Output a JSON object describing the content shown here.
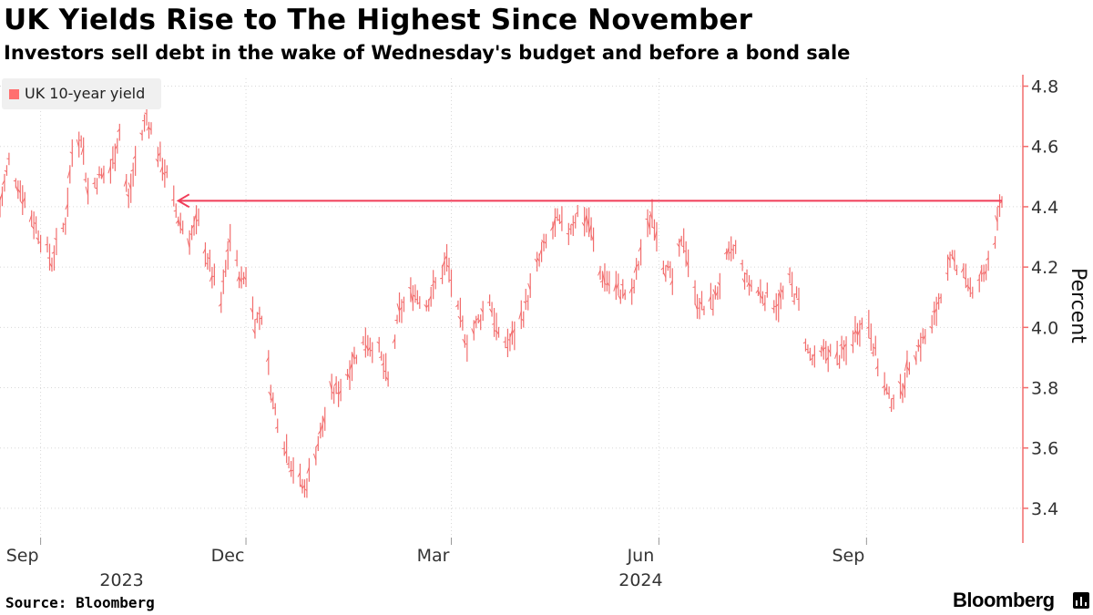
{
  "title": "UK Yields Rise to The Highest Since November",
  "subtitle": "Investors sell debt in the wake of Wednesday's budget and before a bond sale",
  "source": "Source: Bloomberg",
  "brand": "Bloomberg",
  "colors": {
    "series": "#f26d6d",
    "arrow": "#f03c58",
    "axis": "#f26d6d",
    "grid": "#d8d8d8"
  },
  "chart_data": {
    "type": "line",
    "style": "daily high-low bars",
    "title": "UK Yields Rise to The Highest Since November",
    "subtitle": "Investors sell debt in the wake of Wednesday's budget and before a bond sale",
    "ylabel": "Percent",
    "ylim": [
      3.3,
      4.85
    ],
    "yticks": [
      3.4,
      3.6,
      3.8,
      4.0,
      4.2,
      4.4,
      4.6,
      4.8
    ],
    "ytick_labels": [
      "3.4",
      "3.6",
      "3.8",
      "4.0",
      "4.2",
      "4.4",
      "4.6",
      "4.8"
    ],
    "x_range": [
      "2023-08-14",
      "2024-10-31"
    ],
    "x_month_labels": [
      {
        "date": "2023-09-01",
        "label": "Sep"
      },
      {
        "date": "2023-12-01",
        "label": "Dec"
      },
      {
        "date": "2024-03-01",
        "label": "Mar"
      },
      {
        "date": "2024-06-01",
        "label": "Jun"
      },
      {
        "date": "2024-09-01",
        "label": "Sep"
      }
    ],
    "x_year_labels": [
      {
        "date": "2023-10-15",
        "label": "2023"
      },
      {
        "date": "2024-06-01",
        "label": "2024"
      }
    ],
    "legend": [
      "UK 10-year yield"
    ],
    "annotation": {
      "type": "arrow",
      "level": 4.42,
      "from": "2024-10-31",
      "to": "2023-11-01",
      "text": ""
    },
    "series": [
      {
        "name": "UK 10-year yield",
        "anchors": [
          [
            "2023-08-14",
            4.4
          ],
          [
            "2023-08-18",
            4.55
          ],
          [
            "2023-08-25",
            4.42
          ],
          [
            "2023-09-01",
            4.3
          ],
          [
            "2023-09-06",
            4.22
          ],
          [
            "2023-09-12",
            4.35
          ],
          [
            "2023-09-15",
            4.58
          ],
          [
            "2023-09-19",
            4.64
          ],
          [
            "2023-09-22",
            4.45
          ],
          [
            "2023-09-27",
            4.5
          ],
          [
            "2023-10-02",
            4.52
          ],
          [
            "2023-10-06",
            4.65
          ],
          [
            "2023-10-10",
            4.42
          ],
          [
            "2023-10-13",
            4.55
          ],
          [
            "2023-10-18",
            4.7
          ],
          [
            "2023-10-23",
            4.58
          ],
          [
            "2023-10-27",
            4.5
          ],
          [
            "2023-11-01",
            4.36
          ],
          [
            "2023-11-06",
            4.3
          ],
          [
            "2023-11-10",
            4.35
          ],
          [
            "2023-11-15",
            4.2
          ],
          [
            "2023-11-20",
            4.08
          ],
          [
            "2023-11-24",
            4.3
          ],
          [
            "2023-11-29",
            4.15
          ],
          [
            "2023-12-01",
            4.18
          ],
          [
            "2023-12-05",
            4.02
          ],
          [
            "2023-12-08",
            4.04
          ],
          [
            "2023-12-13",
            3.75
          ],
          [
            "2023-12-18",
            3.62
          ],
          [
            "2023-12-21",
            3.55
          ],
          [
            "2023-12-27",
            3.46
          ],
          [
            "2024-01-02",
            3.62
          ],
          [
            "2024-01-08",
            3.78
          ],
          [
            "2024-01-12",
            3.8
          ],
          [
            "2024-01-18",
            3.9
          ],
          [
            "2024-01-23",
            3.96
          ],
          [
            "2024-01-29",
            3.92
          ],
          [
            "2024-02-02",
            3.82
          ],
          [
            "2024-02-07",
            4.05
          ],
          [
            "2024-02-13",
            4.12
          ],
          [
            "2024-02-19",
            4.08
          ],
          [
            "2024-02-23",
            4.14
          ],
          [
            "2024-02-28",
            4.22
          ],
          [
            "2024-03-04",
            4.05
          ],
          [
            "2024-03-08",
            3.95
          ],
          [
            "2024-03-13",
            4.02
          ],
          [
            "2024-03-18",
            4.1
          ],
          [
            "2024-03-22",
            3.96
          ],
          [
            "2024-03-27",
            3.95
          ],
          [
            "2024-04-02",
            4.05
          ],
          [
            "2024-04-08",
            4.2
          ],
          [
            "2024-04-12",
            4.28
          ],
          [
            "2024-04-17",
            4.35
          ],
          [
            "2024-04-22",
            4.32
          ],
          [
            "2024-04-26",
            4.38
          ],
          [
            "2024-05-01",
            4.35
          ],
          [
            "2024-05-06",
            4.18
          ],
          [
            "2024-05-10",
            4.15
          ],
          [
            "2024-05-15",
            4.12
          ],
          [
            "2024-05-20",
            4.1
          ],
          [
            "2024-05-24",
            4.25
          ],
          [
            "2024-05-29",
            4.38
          ],
          [
            "2024-06-03",
            4.22
          ],
          [
            "2024-06-07",
            4.15
          ],
          [
            "2024-06-12",
            4.3
          ],
          [
            "2024-06-17",
            4.1
          ],
          [
            "2024-06-21",
            4.06
          ],
          [
            "2024-06-26",
            4.1
          ],
          [
            "2024-07-01",
            4.22
          ],
          [
            "2024-07-05",
            4.26
          ],
          [
            "2024-07-10",
            4.15
          ],
          [
            "2024-07-15",
            4.12
          ],
          [
            "2024-07-19",
            4.1
          ],
          [
            "2024-07-24",
            4.08
          ],
          [
            "2024-07-29",
            4.15
          ],
          [
            "2024-08-02",
            4.08
          ],
          [
            "2024-08-06",
            3.92
          ],
          [
            "2024-08-09",
            3.88
          ],
          [
            "2024-08-14",
            3.92
          ],
          [
            "2024-08-19",
            3.9
          ],
          [
            "2024-08-23",
            3.92
          ],
          [
            "2024-08-28",
            4.0
          ],
          [
            "2024-09-02",
            4.02
          ],
          [
            "2024-09-06",
            3.88
          ],
          [
            "2024-09-11",
            3.76
          ],
          [
            "2024-09-16",
            3.78
          ],
          [
            "2024-09-20",
            3.88
          ],
          [
            "2024-09-25",
            3.95
          ],
          [
            "2024-09-30",
            4.0
          ],
          [
            "2024-10-04",
            4.12
          ],
          [
            "2024-10-09",
            4.22
          ],
          [
            "2024-10-14",
            4.2
          ],
          [
            "2024-10-18",
            4.1
          ],
          [
            "2024-10-23",
            4.18
          ],
          [
            "2024-10-28",
            4.3
          ],
          [
            "2024-10-31",
            4.42
          ]
        ]
      }
    ]
  }
}
